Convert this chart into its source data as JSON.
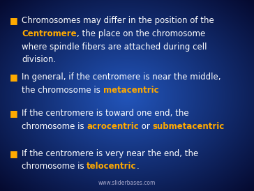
{
  "bg_center_color": "#2255bb",
  "bg_edge_color": "#050a30",
  "text_color": "#ffffff",
  "highlight_color": "#ffaa00",
  "bullet_color": "#ffaa00",
  "footer_text": "www.sliderbases.com",
  "footer_fontsize": 5.5,
  "font_size": 8.5,
  "bullets": [
    {
      "lines": [
        [
          {
            "text": "Chromosomes may differ in the position of the",
            "color": "#ffffff",
            "bold": false
          }
        ],
        [
          {
            "text": "Centromere",
            "color": "#ffaa00",
            "bold": true
          },
          {
            "text": ", the place on the chromosome",
            "color": "#ffffff",
            "bold": false
          }
        ],
        [
          {
            "text": "where spindle fibers are attached during cell",
            "color": "#ffffff",
            "bold": false
          }
        ],
        [
          {
            "text": "division.",
            "color": "#ffffff",
            "bold": false
          }
        ]
      ]
    },
    {
      "lines": [
        [
          {
            "text": "In general, if the centromere is near the middle,",
            "color": "#ffffff",
            "bold": false
          }
        ],
        [
          {
            "text": "the chromosome is ",
            "color": "#ffffff",
            "bold": false
          },
          {
            "text": "metacentric",
            "color": "#ffaa00",
            "bold": true
          }
        ]
      ]
    },
    {
      "lines": [
        [
          {
            "text": "If the centromere is toward one end, the",
            "color": "#ffffff",
            "bold": false
          }
        ],
        [
          {
            "text": "chromosome is ",
            "color": "#ffffff",
            "bold": false
          },
          {
            "text": "acrocentric",
            "color": "#ffaa00",
            "bold": true
          },
          {
            "text": " or ",
            "color": "#ffffff",
            "bold": false
          },
          {
            "text": "submetacentric",
            "color": "#ffaa00",
            "bold": true
          }
        ]
      ]
    },
    {
      "lines": [
        [
          {
            "text": "If the centromere is very near the end, the",
            "color": "#ffffff",
            "bold": false
          }
        ],
        [
          {
            "text": "chromosome is ",
            "color": "#ffffff",
            "bold": false
          },
          {
            "text": "telocentric",
            "color": "#ffaa00",
            "bold": true
          },
          {
            "text": ".",
            "color": "#ffffff",
            "bold": false
          }
        ]
      ]
    }
  ]
}
